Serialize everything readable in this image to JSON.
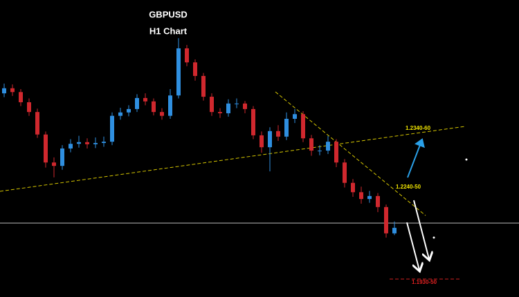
{
  "chart_data": {
    "type": "candlestick",
    "title": "GBPUSD",
    "subtitle": "H1 Chart",
    "categories": [
      null,
      null,
      null,
      null,
      null,
      null,
      null,
      null,
      null,
      null,
      null,
      null,
      null,
      null,
      null,
      null,
      null,
      null,
      null,
      null,
      null,
      null,
      null,
      null,
      null,
      null,
      null,
      null,
      null,
      null,
      null,
      null,
      null,
      null,
      null,
      null,
      null,
      null,
      null,
      null,
      null,
      null,
      null,
      null,
      null,
      null,
      null,
      null
    ],
    "open": [
      1.238,
      1.2392,
      1.2383,
      1.2359,
      1.2336,
      1.2283,
      1.2217,
      1.2209,
      1.225,
      1.2261,
      1.2265,
      1.226,
      1.2263,
      1.2266,
      1.2327,
      1.2335,
      1.2343,
      1.2369,
      1.2361,
      1.2336,
      1.2327,
      1.2375,
      1.2486,
      1.2453,
      1.2421,
      1.2372,
      1.2336,
      1.2333,
      1.2356,
      1.2356,
      1.2343,
      1.2281,
      1.2253,
      1.2291,
      1.2278,
      1.232,
      1.2331,
      1.2274,
      1.2245,
      1.2245,
      1.2266,
      1.2217,
      1.2169,
      1.2147,
      1.2131,
      1.2138,
      1.2112,
      1.205
    ],
    "high": [
      1.2403,
      1.2401,
      1.239,
      1.2368,
      1.2344,
      1.229,
      1.2229,
      1.2258,
      1.2272,
      1.228,
      1.2274,
      1.2276,
      1.2278,
      1.2335,
      1.2346,
      1.2352,
      1.2378,
      1.238,
      1.2368,
      1.2345,
      1.239,
      1.251,
      1.2494,
      1.246,
      1.2428,
      1.238,
      1.2345,
      1.2366,
      1.2368,
      1.2362,
      1.235,
      1.229,
      1.23,
      1.2305,
      1.2335,
      1.2343,
      1.2338,
      1.2282,
      1.2258,
      1.228,
      1.2272,
      1.2225,
      1.2178,
      1.216,
      1.215,
      1.2145,
      1.2118,
      1.2078
    ],
    "low": [
      1.2371,
      1.2374,
      1.235,
      1.2327,
      1.2275,
      1.2205,
      1.2182,
      1.22,
      1.2241,
      1.2252,
      1.225,
      1.2251,
      1.2254,
      1.2258,
      1.2318,
      1.2326,
      1.2336,
      1.2352,
      1.2328,
      1.2318,
      1.232,
      1.2368,
      1.2444,
      1.241,
      1.2363,
      1.2327,
      1.2322,
      1.2325,
      1.2345,
      1.2333,
      1.2272,
      1.224,
      1.2196,
      1.2268,
      1.227,
      1.231,
      1.2265,
      1.2233,
      1.2234,
      1.2237,
      1.2206,
      1.2158,
      1.2136,
      1.212,
      1.2122,
      1.21,
      1.204,
      1.2046
    ],
    "close": [
      1.2392,
      1.2383,
      1.2359,
      1.2336,
      1.2283,
      1.2217,
      1.2209,
      1.225,
      1.2261,
      1.2265,
      1.226,
      1.2263,
      1.2266,
      1.2327,
      1.2335,
      1.2343,
      1.2369,
      1.2361,
      1.2336,
      1.2327,
      1.2375,
      1.2486,
      1.2453,
      1.2421,
      1.2372,
      1.2336,
      1.2333,
      1.2356,
      1.2356,
      1.2343,
      1.2281,
      1.2253,
      1.2291,
      1.2278,
      1.232,
      1.2331,
      1.2274,
      1.2245,
      1.2245,
      1.2266,
      1.2217,
      1.2169,
      1.2147,
      1.2131,
      1.2138,
      1.2112,
      1.205,
      1.2063
    ],
    "ylim": [
      1.19,
      1.26
    ],
    "up_color": "#2f8fe0",
    "down_color": "#d0282e",
    "annotations": [
      {
        "text": "1.2340-60",
        "color": "#f2e600"
      },
      {
        "text": "1.2240-50",
        "color": "#f2e600"
      },
      {
        "text": "1.1930-50",
        "color": "#e02020"
      }
    ]
  }
}
